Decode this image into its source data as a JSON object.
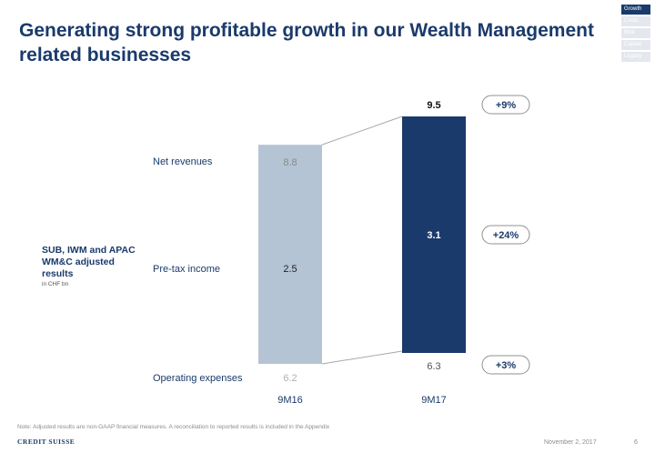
{
  "header": {
    "title": "Generating strong profitable growth in our Wealth Management related businesses"
  },
  "nav": {
    "items": [
      "Growth",
      "Costs",
      "Risk",
      "Capital",
      "Legacy"
    ],
    "active_index": 0
  },
  "side": {
    "label": "SUB, IWM and APAC WM&C adjusted results",
    "unit": "in CHF bn"
  },
  "rows": {
    "net_revenues": "Net revenues",
    "pretax_income": "Pre-tax income",
    "operating_expenses": "Operating expenses"
  },
  "footer": {
    "note": "Note: Adjusted results are non-GAAP financial measures. A reconciliation to reported results is included in the Appendix",
    "logo": "CREDIT SUISSE",
    "date": "November 2, 2017",
    "page": "6"
  },
  "colors": {
    "navy": "#1a3a6b",
    "light_bar": "#b4c4d4",
    "connector": "#a8a8a8",
    "nav_inactive": "#e4e8ee"
  },
  "chart_data": {
    "type": "bar",
    "categories": [
      "9M16",
      "9M17"
    ],
    "series": [
      {
        "name": "Net revenues",
        "values": [
          8.8,
          9.5
        ]
      },
      {
        "name": "Pre-tax income",
        "values": [
          2.5,
          3.1
        ]
      },
      {
        "name": "Operating expenses",
        "values": [
          6.2,
          6.3
        ]
      }
    ],
    "changes": [
      {
        "metric": "Net revenues",
        "label": "+9%"
      },
      {
        "metric": "Pre-tax income",
        "label": "+24%"
      },
      {
        "metric": "Operating expenses",
        "label": "+3%"
      }
    ],
    "labels": {
      "net_revenues": [
        "8.8",
        "9.5"
      ],
      "pretax_income": [
        "2.5",
        "3.1"
      ],
      "operating_expenses": [
        "6.2",
        "6.3"
      ]
    }
  }
}
